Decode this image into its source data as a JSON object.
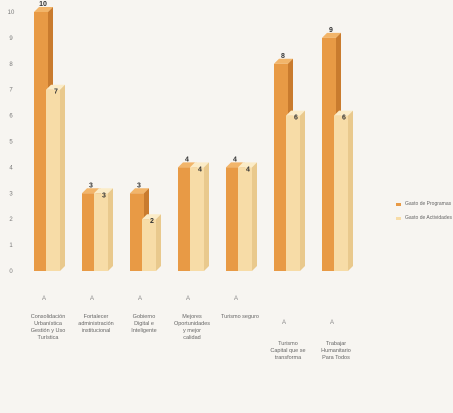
{
  "chart_data": {
    "type": "bar",
    "categories": [
      "Consolidación Urbanística Gestión y Uso Turística",
      "Fortalecer administración institucional",
      "Gobierno Digital e Inteligente",
      "Mejores Oportunidades y mejor calidad",
      "Turismo seguro",
      "Turismo Capital que se transforma",
      "Trabajar Humanitario Para Todos"
    ],
    "category_letters": [
      "A",
      "A",
      "A",
      "A",
      "A",
      "A",
      "A"
    ],
    "series": [
      {
        "name": "Gasto de Programas",
        "values": [
          10,
          3,
          3,
          4,
          4,
          8,
          9
        ]
      },
      {
        "name": "Gasto de Actividades",
        "values": [
          7,
          3,
          2,
          4,
          4,
          6,
          6
        ]
      }
    ],
    "ylim": [
      0,
      10
    ],
    "yticks": [
      0,
      1,
      2,
      3,
      4,
      5,
      6,
      7,
      8,
      9,
      10
    ],
    "colors": {
      "series1": "#e89a45",
      "series1_top": "#f2b56a",
      "series2": "#f7dca7",
      "series2_top": "#fbecc8"
    },
    "legend_position": "right"
  }
}
